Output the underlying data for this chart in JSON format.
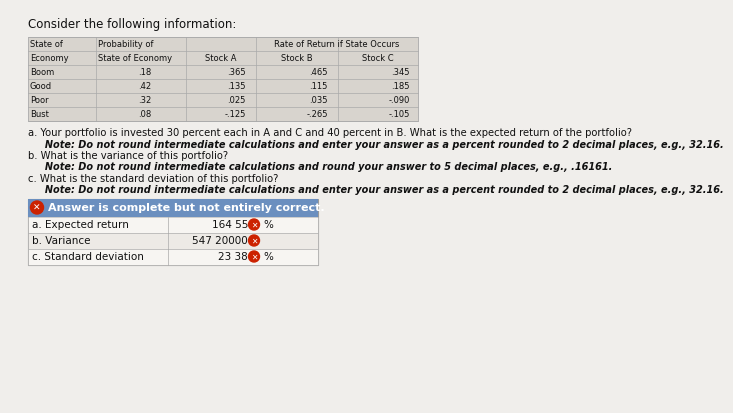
{
  "title": "Consider the following information:",
  "states": [
    "Boom",
    "Good",
    "Poor",
    "Bust"
  ],
  "probabilities": [
    ".18",
    ".42",
    ".32",
    ".08"
  ],
  "stock_a": [
    ".365",
    ".135",
    ".025",
    "-.125"
  ],
  "stock_b": [
    ".465",
    ".115",
    ".035",
    "-.265"
  ],
  "stock_c": [
    ".345",
    ".185",
    "-.090",
    "-.105"
  ],
  "question_a": "a. Your portfolio is invested 30 percent each in A and C and 40 percent in B. What is the expected return of the portfolio?",
  "note_a": "     Note: Do not round intermediate calculations and enter your answer as a percent rounded to 2 decimal places, e.g., 32.16.",
  "question_b": "b. What is the variance of this portfolio?",
  "note_b": "     Note: Do not round intermediate calculations and round your answer to 5 decimal places, e.g., .16161.",
  "question_c": "c. What is the standard deviation of this portfolio?",
  "note_c": "     Note: Do not round intermediate calculations and enter your answer as a percent rounded to 2 decimal places, e.g., 32.16.",
  "answer_banner": "Answer is complete but not entirely correct.",
  "answer_rows": [
    {
      "label": "a. Expected return",
      "value": "164 55",
      "unit": "%"
    },
    {
      "label": "b. Variance",
      "value": "547 20000",
      "unit": ""
    },
    {
      "label": "c. Standard deviation",
      "value": "23 38",
      "unit": "%"
    }
  ],
  "bg_color": "#f0eeeb",
  "table_bg": "#d8d4ce",
  "table_border": "#aaaaaa",
  "answer_banner_bg": "#6b8fbf",
  "answer_banner_border": "#8faacc",
  "answer_bg": "#e8e4df",
  "row_bg_even": "#f5f3f0",
  "row_bg_odd": "#ebe8e4",
  "icon_color": "#cc2200",
  "banner_text_color": "#ffffff",
  "text_color": "#111111"
}
